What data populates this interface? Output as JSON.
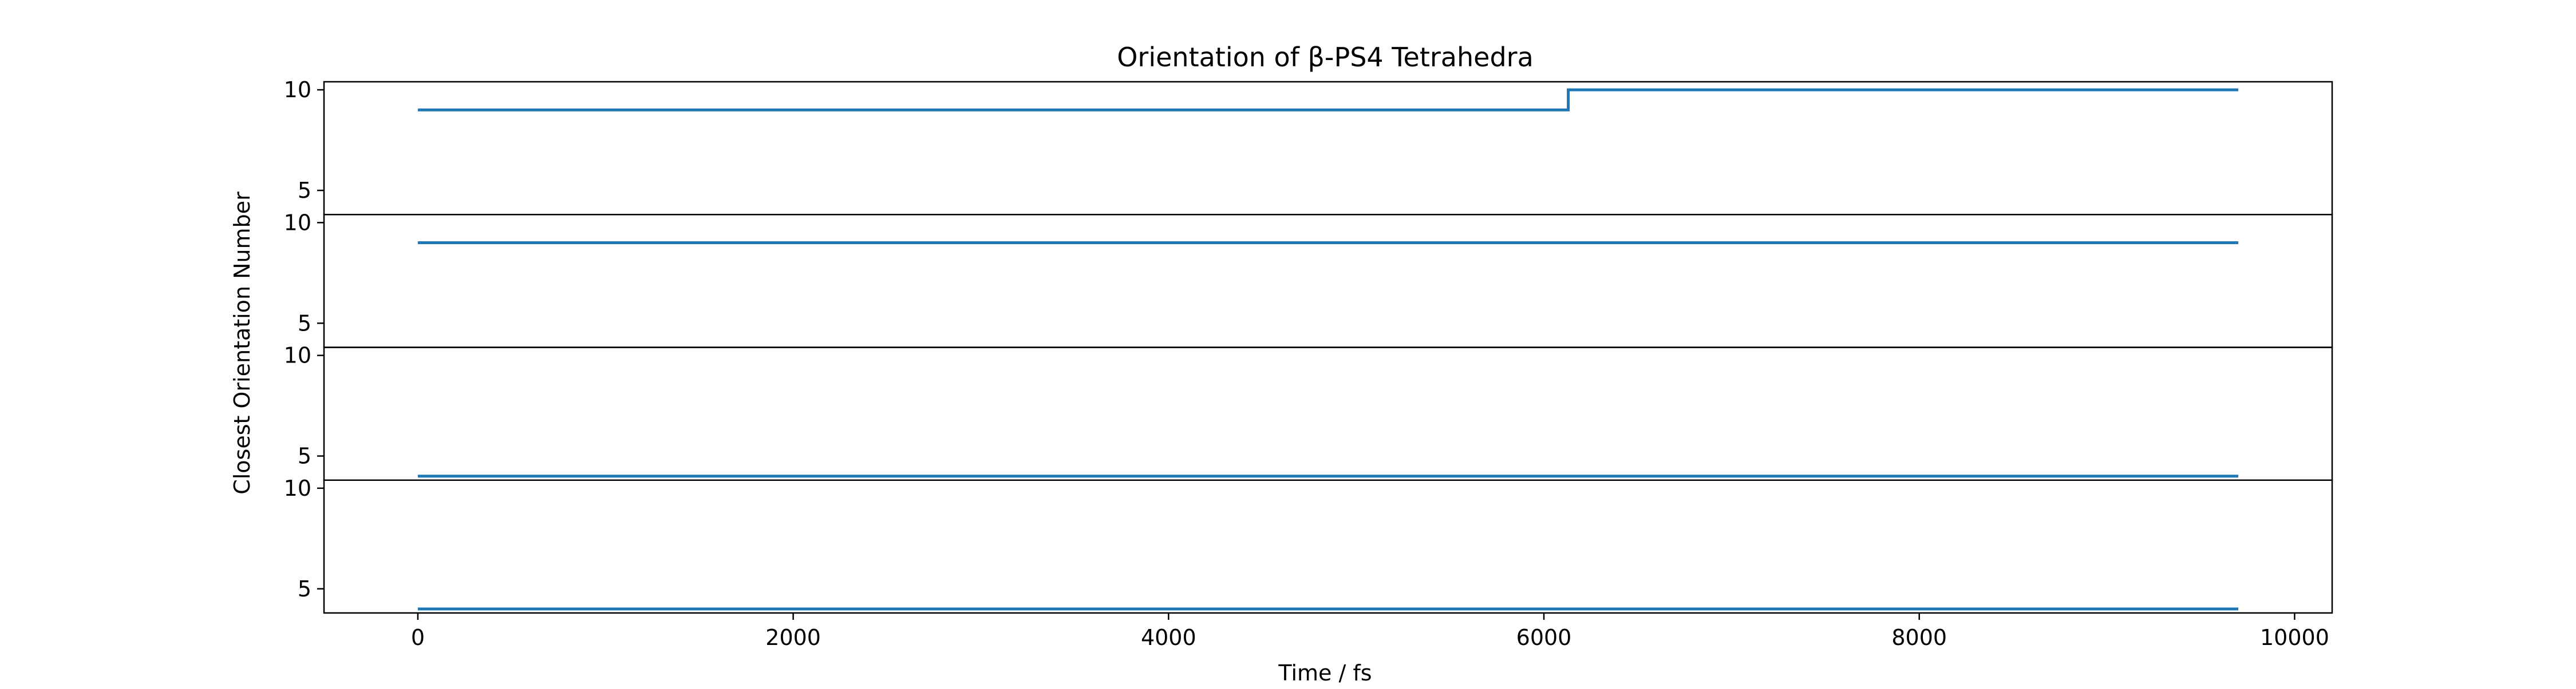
{
  "chart_data": {
    "type": "line",
    "title": "Orientation of β-PS4 Tetrahedra",
    "xlabel": "Time / fs",
    "ylabel": "Closest Orientation Number",
    "xlim": [
      -500,
      10200
    ],
    "x_ticks": [
      0,
      2000,
      4000,
      6000,
      8000,
      10000
    ],
    "x_tick_labels": [
      "0",
      "2000",
      "4000",
      "6000",
      "8000",
      "10000"
    ],
    "ylim": [
      3.8,
      10.4
    ],
    "y_ticks": [
      5,
      10
    ],
    "y_tick_labels": [
      "5",
      "10"
    ],
    "grid": false,
    "line_color": "#1f77b4",
    "panels": [
      {
        "x": [
          0,
          6130,
          6130,
          9700
        ],
        "y": [
          9,
          9,
          10,
          10
        ]
      },
      {
        "x": [
          0,
          9700
        ],
        "y": [
          9,
          9
        ]
      },
      {
        "x": [
          0,
          9700
        ],
        "y": [
          4,
          4
        ]
      },
      {
        "x": [
          0,
          9700
        ],
        "y": [
          4,
          4
        ]
      }
    ]
  }
}
